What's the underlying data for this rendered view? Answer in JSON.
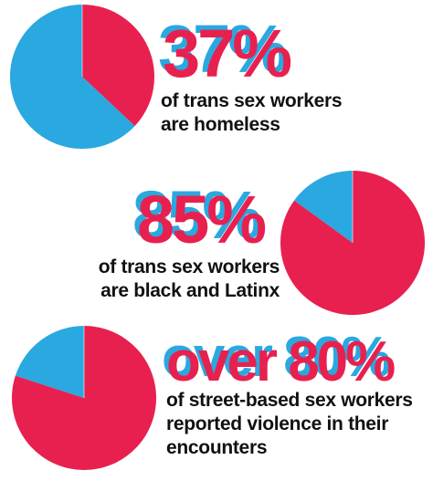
{
  "colors": {
    "pink": "#e8204f",
    "blue": "#2aa8e0",
    "text": "#111111"
  },
  "chart_data": [
    {
      "type": "pie",
      "stat": "37%",
      "caption": [
        "of trans sex workers",
        "are homeless"
      ],
      "slices": [
        {
          "value": 37,
          "color": "#e8204f"
        },
        {
          "value": 63,
          "color": "#2aa8e0"
        }
      ]
    },
    {
      "type": "pie",
      "stat": "85%",
      "caption": [
        "of trans sex workers",
        "are black and Latinx"
      ],
      "slices": [
        {
          "value": 85,
          "color": "#e8204f"
        },
        {
          "value": 15,
          "color": "#2aa8e0"
        }
      ]
    },
    {
      "type": "pie",
      "stat": "over 80%",
      "caption": [
        "of street-based sex workers",
        "reported violence in their",
        "encounters"
      ],
      "slices": [
        {
          "value": 80,
          "color": "#e8204f"
        },
        {
          "value": 20,
          "color": "#2aa8e0"
        }
      ]
    }
  ]
}
